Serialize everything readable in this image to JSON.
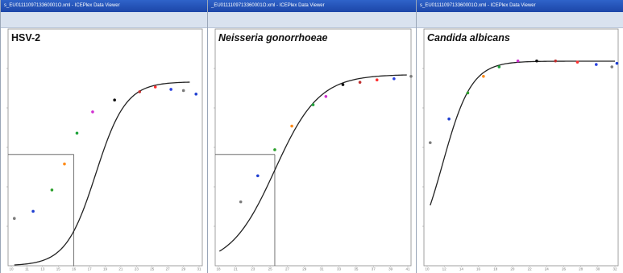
{
  "windows": [
    {
      "title": "s_EU0111109713360001O.xml - ICEPlex Data Viewer"
    },
    {
      "title": "_EU0111109713360001O.xml - ICEPlex Data Viewer"
    },
    {
      "title": "s_EU0111109713360001O.xml - ICEPlex Data Viewer"
    }
  ],
  "colors": {
    "titlebar": "#2f63c9",
    "frame": "#d9e2ef",
    "curve": "#222222",
    "point_palette": [
      "#7b7b7b",
      "#1f3fd1",
      "#2ca02c",
      "#ff8c1a",
      "#1fa33b",
      "#d12fd1",
      "#111111",
      "#c03030",
      "#ff3030",
      "#2a42e0"
    ]
  },
  "chart_data": [
    {
      "type": "scatter",
      "title": "HSV-2",
      "title_italic": false,
      "xlabel": "",
      "ylabel": "",
      "xlim": [
        10,
        41
      ],
      "ylim": [
        0,
        1
      ],
      "x_ticks": [
        10,
        11,
        13,
        15,
        16,
        17,
        19,
        21,
        23,
        25,
        27,
        29,
        31
      ],
      "grid": false,
      "curve": {
        "type": "sigmoid",
        "top": 0.777,
        "bottom": 0.0,
        "mid": 24.0,
        "slope": 2.4,
        "x_from": 11.0,
        "x_to": 39.0
      },
      "reference_point": {
        "x": 20.5,
        "y": 0.47
      },
      "points": [
        {
          "x": 11.0,
          "y": 0.2
        },
        {
          "x": 14.0,
          "y": 0.23
        },
        {
          "x": 17.0,
          "y": 0.32
        },
        {
          "x": 19.0,
          "y": 0.43
        },
        {
          "x": 21.0,
          "y": 0.56
        },
        {
          "x": 23.5,
          "y": 0.65
        },
        {
          "x": 27.0,
          "y": 0.7
        },
        {
          "x": 31.0,
          "y": 0.735
        },
        {
          "x": 33.5,
          "y": 0.755
        },
        {
          "x": 36.0,
          "y": 0.745
        },
        {
          "x": 38.0,
          "y": 0.74
        },
        {
          "x": 40.0,
          "y": 0.725
        }
      ]
    },
    {
      "type": "scatter",
      "title": "Neisseria gonorrhoeae",
      "title_italic": true,
      "xlabel": "",
      "ylabel": "",
      "xlim": [
        18,
        41
      ],
      "ylim": [
        0,
        1
      ],
      "x_ticks": [
        18,
        21,
        23,
        25,
        27,
        29,
        31,
        33,
        35,
        37,
        39,
        41
      ],
      "grid": false,
      "curve": {
        "type": "sigmoid",
        "top": 0.808,
        "bottom": 0.0,
        "mid": 25.0,
        "slope": 2.6,
        "x_from": 18.5,
        "x_to": 40.5
      },
      "reference_point": {
        "x": 25.0,
        "y": 0.47
      },
      "points": [
        {
          "x": 21.0,
          "y": 0.27
        },
        {
          "x": 23.0,
          "y": 0.38
        },
        {
          "x": 25.0,
          "y": 0.49
        },
        {
          "x": 27.0,
          "y": 0.59
        },
        {
          "x": 29.5,
          "y": 0.68
        },
        {
          "x": 31.0,
          "y": 0.715
        },
        {
          "x": 33.0,
          "y": 0.765
        },
        {
          "x": 35.0,
          "y": 0.775
        },
        {
          "x": 37.0,
          "y": 0.785
        },
        {
          "x": 39.0,
          "y": 0.79
        },
        {
          "x": 41.0,
          "y": 0.8
        }
      ]
    },
    {
      "type": "scatter",
      "title": "Candida albicans",
      "title_italic": true,
      "xlabel": "",
      "ylabel": "",
      "xlim": [
        10,
        41
      ],
      "ylim": [
        0,
        1
      ],
      "x_ticks": [
        10,
        12,
        14,
        16,
        18,
        20,
        22,
        24,
        26,
        28,
        30,
        32
      ],
      "grid": false,
      "curve": {
        "type": "sigmoid",
        "top": 0.864,
        "bottom": 0.0,
        "mid": 13.0,
        "slope": 2.3,
        "x_from": 11.0,
        "x_to": 40.5
      },
      "reference_point": null,
      "points": [
        {
          "x": 11.0,
          "y": 0.52
        },
        {
          "x": 14.0,
          "y": 0.62
        },
        {
          "x": 17.0,
          "y": 0.73
        },
        {
          "x": 19.5,
          "y": 0.8
        },
        {
          "x": 22.0,
          "y": 0.84
        },
        {
          "x": 25.0,
          "y": 0.865
        },
        {
          "x": 28.0,
          "y": 0.865
        },
        {
          "x": 31.0,
          "y": 0.865
        },
        {
          "x": 34.5,
          "y": 0.86
        },
        {
          "x": 37.5,
          "y": 0.85
        },
        {
          "x": 40.0,
          "y": 0.84
        },
        {
          "x": 40.8,
          "y": 0.855
        }
      ]
    }
  ]
}
